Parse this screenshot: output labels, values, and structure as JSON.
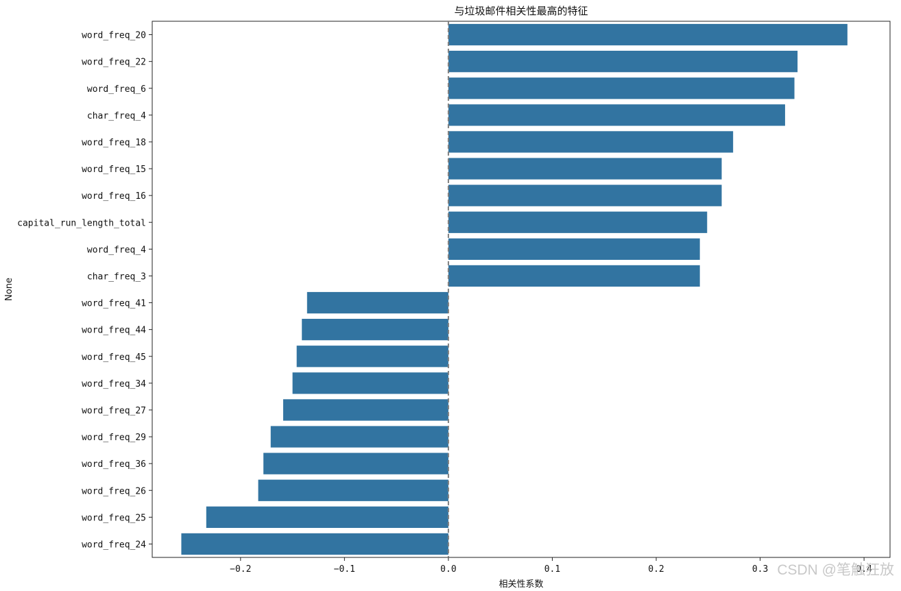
{
  "chart_data": {
    "type": "bar",
    "orientation": "horizontal",
    "title": "与垃圾邮件相关性最高的特征",
    "xlabel": "相关性系数",
    "ylabel": "None",
    "xlim": [
      -0.285,
      0.425
    ],
    "xticks": [
      -0.2,
      -0.1,
      0.0,
      0.1,
      0.2,
      0.3,
      0.4
    ],
    "xtick_labels": [
      "−0.2",
      "−0.1",
      "0.0",
      "0.1",
      "0.2",
      "0.3",
      "0.4"
    ],
    "reference_line": 0,
    "bar_color": "#3274a1",
    "categories": [
      "word_freq_20",
      "word_freq_22",
      "word_freq_6",
      "char_freq_4",
      "word_freq_18",
      "word_freq_15",
      "word_freq_16",
      "capital_run_length_total",
      "word_freq_4",
      "char_freq_3",
      "word_freq_41",
      "word_freq_44",
      "word_freq_45",
      "word_freq_34",
      "word_freq_27",
      "word_freq_29",
      "word_freq_36",
      "word_freq_26",
      "word_freq_25",
      "word_freq_24"
    ],
    "values": [
      0.384,
      0.336,
      0.333,
      0.324,
      0.274,
      0.263,
      0.263,
      0.249,
      0.242,
      0.242,
      -0.136,
      -0.141,
      -0.146,
      -0.15,
      -0.159,
      -0.171,
      -0.178,
      -0.183,
      -0.233,
      -0.257
    ]
  },
  "watermark": "CSDN @笔触狂放"
}
